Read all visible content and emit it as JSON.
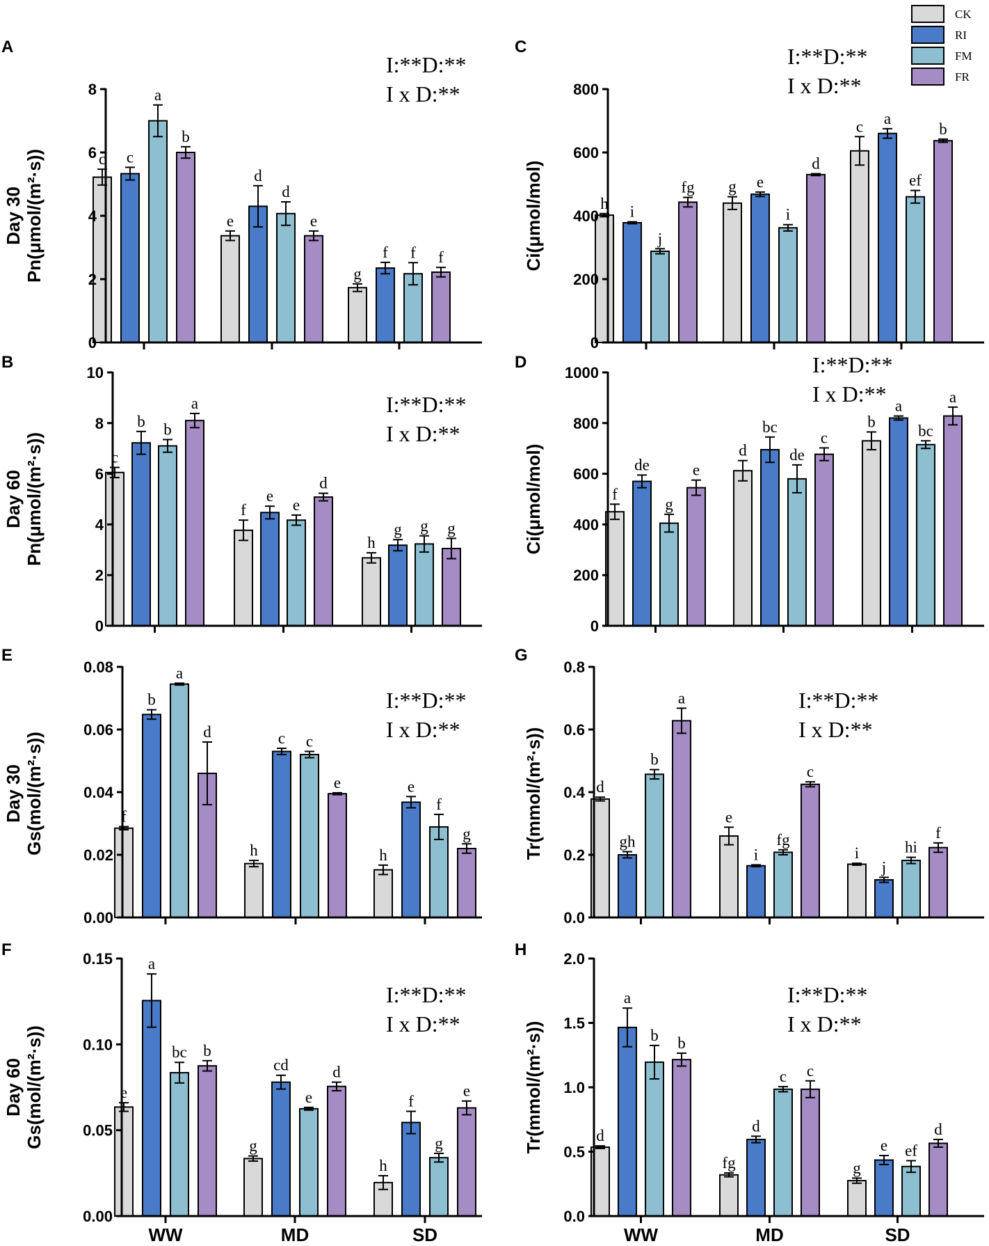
{
  "legend": [
    {
      "name": "CK",
      "color": "#d9d9d9"
    },
    {
      "name": "RI",
      "color": "#4a7bc8"
    },
    {
      "name": "FM",
      "color": "#8dbfd1"
    },
    {
      "name": "FR",
      "color": "#a68cc4"
    }
  ],
  "categories": [
    "WW",
    "MD",
    "SD"
  ],
  "chart_data": [
    {
      "id": "A",
      "type": "bar",
      "row_label": "Day 30",
      "ylabel": "Pn(μmol/(m²·s))",
      "ylim": [
        0,
        8
      ],
      "ticks": [
        0,
        2,
        4,
        6,
        8
      ],
      "tick_labels": [
        "0",
        "2",
        "4",
        "6",
        "8"
      ],
      "stat_line1": "I:**D:**",
      "stat_line2": "I x D:**",
      "series": [
        {
          "name": "CK",
          "values": [
            5.22,
            3.37,
            1.73
          ],
          "errors": [
            0.25,
            0.15,
            0.12
          ],
          "letters": [
            "c",
            "e",
            "g"
          ]
        },
        {
          "name": "RI",
          "values": [
            5.33,
            4.3,
            2.35
          ],
          "errors": [
            0.2,
            0.65,
            0.18
          ],
          "letters": [
            "c",
            "d",
            "f"
          ]
        },
        {
          "name": "FM",
          "values": [
            7.0,
            4.07,
            2.17
          ],
          "errors": [
            0.5,
            0.37,
            0.35
          ],
          "letters": [
            "a",
            "d",
            "f"
          ]
        },
        {
          "name": "FR",
          "values": [
            6.0,
            3.37,
            2.22
          ],
          "errors": [
            0.18,
            0.15,
            0.15
          ],
          "letters": [
            "b",
            "e",
            "f"
          ]
        }
      ]
    },
    {
      "id": "C",
      "type": "bar",
      "row_label": "",
      "ylabel": "Ci(μmol/mol)",
      "ylim": [
        0,
        800
      ],
      "ticks": [
        0,
        200,
        400,
        600,
        800
      ],
      "tick_labels": [
        "0",
        "200",
        "400",
        "600",
        "800"
      ],
      "stat_line1": "I:**D:**",
      "stat_line2": "I x D:**",
      "series": [
        {
          "name": "CK",
          "values": [
            402,
            440,
            605
          ],
          "errors": [
            5,
            20,
            45
          ],
          "letters": [
            "h",
            "g",
            "c"
          ]
        },
        {
          "name": "RI",
          "values": [
            378,
            468,
            660
          ],
          "errors": [
            3,
            7,
            15
          ],
          "letters": [
            "i",
            "e",
            "a"
          ]
        },
        {
          "name": "FM",
          "values": [
            288,
            362,
            460
          ],
          "errors": [
            8,
            10,
            20
          ],
          "letters": [
            "j",
            "i",
            "ef"
          ]
        },
        {
          "name": "FR",
          "values": [
            443,
            530,
            637
          ],
          "errors": [
            15,
            3,
            5
          ],
          "letters": [
            "fg",
            "d",
            "b"
          ]
        }
      ]
    },
    {
      "id": "B",
      "type": "bar",
      "row_label": "Day 60",
      "ylabel": "Pn(μmol/(m²·s))",
      "ylim": [
        0,
        10
      ],
      "ticks": [
        0,
        2,
        4,
        6,
        8,
        10
      ],
      "tick_labels": [
        "0",
        "2",
        "4",
        "6",
        "8",
        "10"
      ],
      "stat_line1": "I:**D:**",
      "stat_line2": "I x D:**",
      "series": [
        {
          "name": "CK",
          "values": [
            6.05,
            3.77,
            2.68
          ],
          "errors": [
            0.2,
            0.4,
            0.2
          ],
          "letters": [
            "c",
            "f",
            "h"
          ]
        },
        {
          "name": "RI",
          "values": [
            7.22,
            4.47,
            3.18
          ],
          "errors": [
            0.45,
            0.25,
            0.22
          ],
          "letters": [
            "b",
            "e",
            "g"
          ]
        },
        {
          "name": "FM",
          "values": [
            7.1,
            4.17,
            3.23
          ],
          "errors": [
            0.25,
            0.2,
            0.32
          ],
          "letters": [
            "b",
            "e",
            "g"
          ]
        },
        {
          "name": "FR",
          "values": [
            8.1,
            5.08,
            3.05
          ],
          "errors": [
            0.28,
            0.15,
            0.4
          ],
          "letters": [
            "a",
            "d",
            "g"
          ]
        }
      ]
    },
    {
      "id": "D",
      "type": "bar",
      "row_label": "",
      "ylabel": "Ci(μmol/mol)",
      "ylim": [
        0,
        1000
      ],
      "ticks": [
        0,
        200,
        400,
        600,
        800,
        1000
      ],
      "tick_labels": [
        "0",
        "200",
        "400",
        "600",
        "800",
        "1000"
      ],
      "stat_line1": "I:**D:**",
      "stat_line2": "I x D:**",
      "series": [
        {
          "name": "CK",
          "values": [
            450,
            612,
            730
          ],
          "errors": [
            30,
            40,
            35
          ],
          "letters": [
            "f",
            "d",
            "b"
          ]
        },
        {
          "name": "RI",
          "values": [
            570,
            695,
            820
          ],
          "errors": [
            25,
            50,
            8
          ],
          "letters": [
            "de",
            "bc",
            "a"
          ]
        },
        {
          "name": "FM",
          "values": [
            405,
            580,
            715
          ],
          "errors": [
            35,
            55,
            15
          ],
          "letters": [
            "g",
            "de",
            "bc"
          ]
        },
        {
          "name": "FR",
          "values": [
            545,
            677,
            828
          ],
          "errors": [
            30,
            25,
            35
          ],
          "letters": [
            "e",
            "c",
            "a"
          ]
        }
      ]
    },
    {
      "id": "E",
      "type": "bar",
      "row_label": "Day 30",
      "ylabel": "Gs(mol/(m²·s))",
      "ylim": [
        0,
        0.08
      ],
      "ticks": [
        0,
        0.02,
        0.04,
        0.06,
        0.08
      ],
      "tick_labels": [
        "0.00",
        "0.02",
        "0.04",
        "0.06",
        "0.08"
      ],
      "stat_line1": "I:**D:**",
      "stat_line2": "I x D:**",
      "series": [
        {
          "name": "CK",
          "values": [
            0.0285,
            0.0172,
            0.0152
          ],
          "errors": [
            0.0005,
            0.001,
            0.0015
          ],
          "letters": [
            "f",
            "h",
            "h"
          ]
        },
        {
          "name": "RI",
          "values": [
            0.0648,
            0.053,
            0.0368
          ],
          "errors": [
            0.0015,
            0.001,
            0.0018
          ],
          "letters": [
            "b",
            "c",
            "e"
          ]
        },
        {
          "name": "FM",
          "values": [
            0.0745,
            0.052,
            0.0289
          ],
          "errors": [
            0.0003,
            0.001,
            0.004
          ],
          "letters": [
            "a",
            "c",
            "f"
          ]
        },
        {
          "name": "FR",
          "values": [
            0.046,
            0.0395,
            0.022
          ],
          "errors": [
            0.01,
            0.0003,
            0.0015
          ],
          "letters": [
            "d",
            "e",
            "g"
          ]
        }
      ]
    },
    {
      "id": "G",
      "type": "bar",
      "row_label": "",
      "ylabel": "Tr(mmol/(m²·s))",
      "ylim": [
        0,
        0.8
      ],
      "ticks": [
        0,
        0.2,
        0.4,
        0.6,
        0.8
      ],
      "tick_labels": [
        "0.0",
        "0.2",
        "0.4",
        "0.6",
        "0.8"
      ],
      "stat_line1": "I:**D:**",
      "stat_line2": "I x D:**",
      "series": [
        {
          "name": "CK",
          "values": [
            0.378,
            0.26,
            0.17
          ],
          "errors": [
            0.006,
            0.028,
            0.003
          ],
          "letters": [
            "d",
            "e",
            "i"
          ]
        },
        {
          "name": "RI",
          "values": [
            0.2,
            0.165,
            0.12
          ],
          "errors": [
            0.01,
            0.003,
            0.008
          ],
          "letters": [
            "gh",
            "i",
            "j"
          ]
        },
        {
          "name": "FM",
          "values": [
            0.457,
            0.208,
            0.182
          ],
          "errors": [
            0.015,
            0.008,
            0.01
          ],
          "letters": [
            "b",
            "fg",
            "hi"
          ]
        },
        {
          "name": "FR",
          "values": [
            0.628,
            0.425,
            0.223
          ],
          "errors": [
            0.04,
            0.008,
            0.015
          ],
          "letters": [
            "a",
            "c",
            "f"
          ]
        }
      ]
    },
    {
      "id": "F",
      "type": "bar",
      "row_label": "Day 60",
      "ylabel": "Gs(mol/(m²·s))",
      "ylim": [
        0,
        0.15
      ],
      "ticks": [
        0,
        0.05,
        0.1,
        0.15
      ],
      "tick_labels": [
        "0.00",
        "0.05",
        "0.10",
        "0.15"
      ],
      "stat_line1": "I:**D:**",
      "stat_line2": "I x D:**",
      "series": [
        {
          "name": "CK",
          "values": [
            0.0635,
            0.0335,
            0.0195
          ],
          "errors": [
            0.0025,
            0.0015,
            0.004
          ],
          "letters": [
            "e",
            "g",
            "h"
          ]
        },
        {
          "name": "RI",
          "values": [
            0.1255,
            0.078,
            0.0545
          ],
          "errors": [
            0.0155,
            0.004,
            0.0065
          ],
          "letters": [
            "a",
            "cd",
            "f"
          ]
        },
        {
          "name": "FM",
          "values": [
            0.0835,
            0.0625,
            0.034
          ],
          "errors": [
            0.006,
            0.0008,
            0.0025
          ],
          "letters": [
            "bc",
            "e",
            "g"
          ]
        },
        {
          "name": "FR",
          "values": [
            0.0875,
            0.0755,
            0.063
          ],
          "errors": [
            0.003,
            0.0025,
            0.004
          ],
          "letters": [
            "b",
            "d",
            "e"
          ]
        }
      ]
    },
    {
      "id": "H",
      "type": "bar",
      "row_label": "",
      "ylabel": "Tr(mmol/(m²·s))",
      "ylim": [
        0,
        2.0
      ],
      "ticks": [
        0,
        0.5,
        1.0,
        1.5,
        2.0
      ],
      "tick_labels": [
        "0.0",
        "0.5",
        "1.0",
        "1.5",
        "2.0"
      ],
      "stat_line1": "I:**D:**",
      "stat_line2": "I x D:**",
      "series": [
        {
          "name": "CK",
          "values": [
            0.535,
            0.32,
            0.275
          ],
          "errors": [
            0.01,
            0.015,
            0.02
          ],
          "letters": [
            "d",
            "fg",
            "g"
          ]
        },
        {
          "name": "RI",
          "values": [
            1.465,
            0.595,
            0.435
          ],
          "errors": [
            0.15,
            0.025,
            0.035
          ],
          "letters": [
            "a",
            "d",
            "e"
          ]
        },
        {
          "name": "FM",
          "values": [
            1.195,
            0.985,
            0.385
          ],
          "errors": [
            0.13,
            0.02,
            0.045
          ],
          "letters": [
            "b",
            "c",
            "ef"
          ]
        },
        {
          "name": "FR",
          "values": [
            1.215,
            0.985,
            0.565
          ],
          "errors": [
            0.05,
            0.065,
            0.03
          ],
          "letters": [
            "b",
            "c",
            "d"
          ]
        }
      ]
    }
  ]
}
